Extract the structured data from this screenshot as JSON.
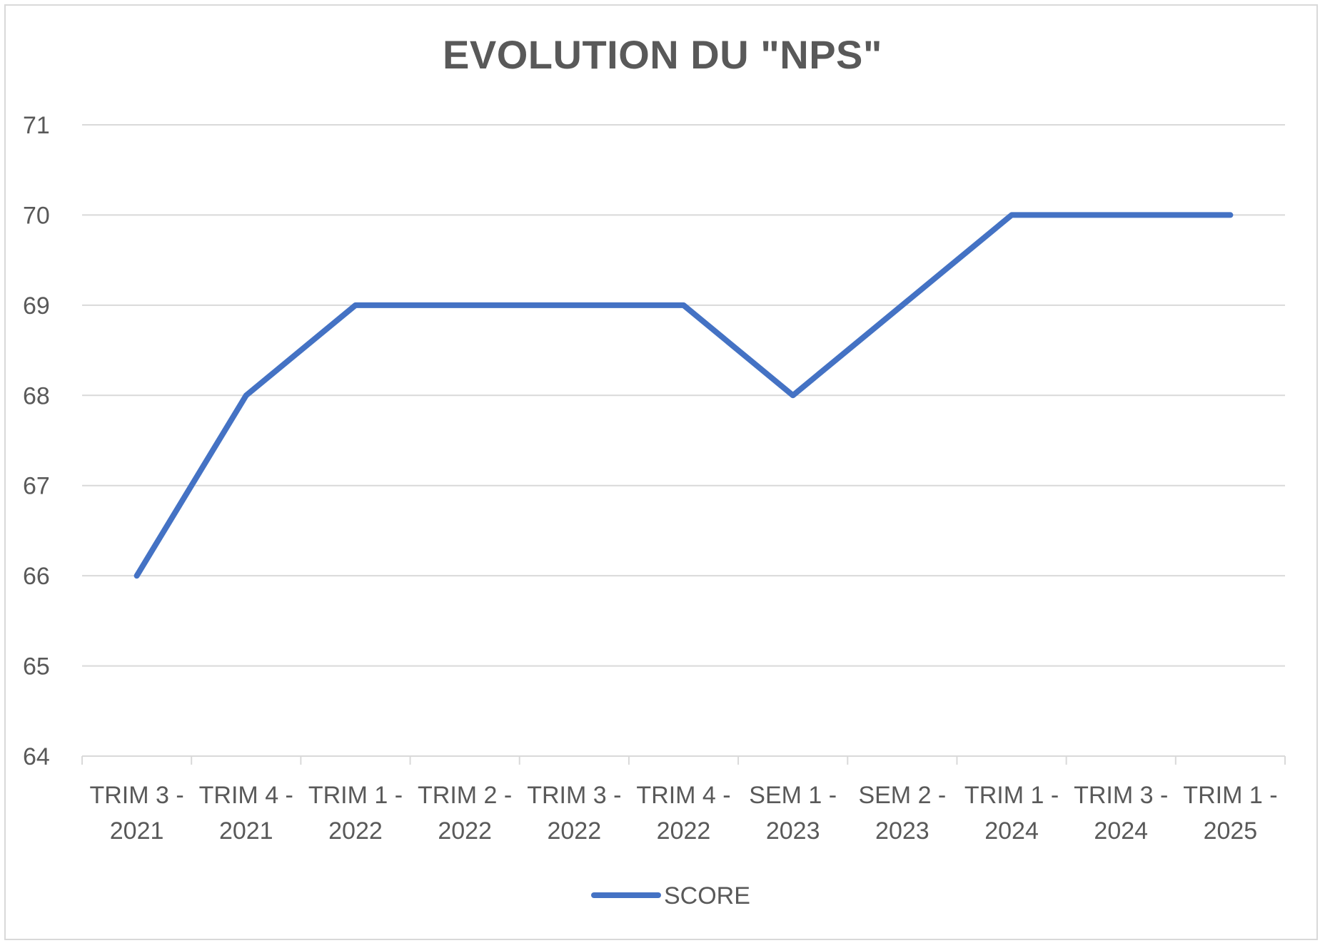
{
  "chart_data": {
    "type": "line",
    "title": "EVOLUTION DU \"NPS\"",
    "categories": [
      [
        "TRIM 3 -",
        "2021"
      ],
      [
        "TRIM 4 -",
        "2021"
      ],
      [
        "TRIM 1 -",
        "2022"
      ],
      [
        "TRIM 2 -",
        "2022"
      ],
      [
        "TRIM 3 -",
        "2022"
      ],
      [
        "TRIM 4 -",
        "2022"
      ],
      [
        "SEM 1 -",
        "2023"
      ],
      [
        "SEM 2 -",
        "2023"
      ],
      [
        "TRIM 1 -",
        "2024"
      ],
      [
        "TRIM 3 -",
        "2024"
      ],
      [
        "TRIM 1 -",
        "2025"
      ]
    ],
    "series": [
      {
        "name": "SCORE",
        "values": [
          66,
          68,
          69,
          69,
          69,
          69,
          68,
          69,
          70,
          70,
          70
        ],
        "color": "#4472c4"
      }
    ],
    "ylim": [
      64,
      71
    ],
    "yticks": [
      64,
      65,
      66,
      67,
      68,
      69,
      70,
      71
    ],
    "grid": true,
    "legend": "bottom-center",
    "gridline_color": "#d9d9d9",
    "text_color": "#595959"
  }
}
